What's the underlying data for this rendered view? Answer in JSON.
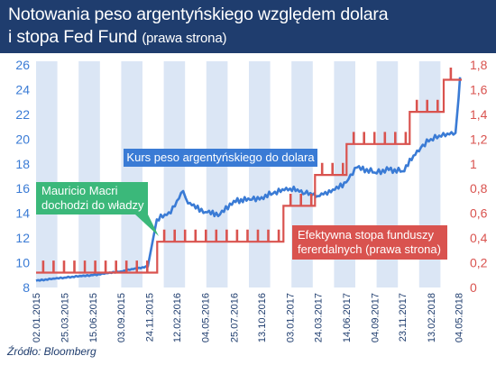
{
  "header": {
    "title_line1": "Notowania peso argentyńskiego względem dolara",
    "title_line2": "i stopa Fed Fund",
    "title_line2_sub": "(prawa strona)"
  },
  "source": "Źródło: Bloomberg",
  "annotations": {
    "peso_label": "Kurs peso argentyńskiego do dolara",
    "macri_line1": "Mauricio Macri",
    "macri_line2": "dochodzi do władzy",
    "fed_line1": "Efektywna stopa funduszy",
    "fed_line2": "fererdalnych (prawa strona)"
  },
  "colors": {
    "header_bg": "#1f3d6e",
    "peso_line": "#3a7bd5",
    "fed_line": "#d9534f",
    "macri_box": "#3bb87a",
    "stripe": "#dbe6f5",
    "left_axis_text": "#3a7bd5",
    "right_axis_text": "#d9534f"
  },
  "chart_data": {
    "type": "line",
    "x_tick_labels": [
      "02.01.2015",
      "25.03.2015",
      "15.06.2015",
      "03.09.2015",
      "24.11.2015",
      "12.02.2016",
      "04.05.2016",
      "25.07.2016",
      "13.10.2016",
      "03.01.2017",
      "24.03.2017",
      "14.06.2017",
      "04.09.2017",
      "23.11.2017",
      "13.02.2018",
      "04.05.2018"
    ],
    "y_left": {
      "label": "",
      "ticks": [
        8,
        10,
        12,
        14,
        16,
        18,
        20,
        22,
        24,
        26
      ],
      "ylim": [
        8,
        26
      ]
    },
    "y_right": {
      "label": "",
      "ticks": [
        "0",
        "0,2",
        "0,4",
        "0,6",
        "0,8",
        "1",
        "1,2",
        "1,4",
        "1,6",
        "1,8"
      ],
      "ylim": [
        0,
        1.8
      ]
    },
    "series": [
      {
        "name": "Kurs peso argentyńskiego do dolara",
        "axis": "left",
        "points": [
          [
            "02.01.2015",
            8.55
          ],
          [
            "25.03.2015",
            8.8
          ],
          [
            "15.06.2015",
            9.0
          ],
          [
            "03.09.2015",
            9.3
          ],
          [
            "20.11.2015",
            9.7
          ],
          [
            "16.12.2015",
            13.5
          ],
          [
            "25.01.2016",
            14.0
          ],
          [
            "01.03.2016",
            15.8
          ],
          [
            "15.03.2016",
            14.8
          ],
          [
            "04.05.2016",
            14.1
          ],
          [
            "15.06.2016",
            13.9
          ],
          [
            "25.07.2016",
            15.0
          ],
          [
            "15.09.2016",
            15.1
          ],
          [
            "13.10.2016",
            15.3
          ],
          [
            "15.11.2016",
            15.6
          ],
          [
            "03.01.2017",
            16.0
          ],
          [
            "15.02.2017",
            15.6
          ],
          [
            "24.03.2017",
            15.4
          ],
          [
            "01.05.2017",
            15.7
          ],
          [
            "14.06.2017",
            16.5
          ],
          [
            "15.07.2017",
            17.7
          ],
          [
            "04.09.2017",
            17.3
          ],
          [
            "15.10.2017",
            17.5
          ],
          [
            "23.11.2017",
            17.4
          ],
          [
            "15.01.2018",
            19.3
          ],
          [
            "13.02.2018",
            20.0
          ],
          [
            "15.03.2018",
            20.2
          ],
          [
            "25.04.2018",
            20.5
          ],
          [
            "04.05.2018",
            23.3
          ],
          [
            "08.05.2018",
            25.0
          ]
        ]
      },
      {
        "name": "Efektywna stopa funduszy fererdalnych",
        "axis": "right",
        "steps": [
          [
            "02.01.2015",
            0.12
          ],
          [
            "17.12.2015",
            0.37
          ],
          [
            "15.12.2016",
            0.66
          ],
          [
            "16.03.2017",
            0.91
          ],
          [
            "15.06.2017",
            1.16
          ],
          [
            "14.12.2017",
            1.42
          ],
          [
            "22.03.2018",
            1.68
          ]
        ],
        "spike_amplitude": 0.09,
        "spike_period_days": 30
      }
    ],
    "x_range": [
      "02.01.2015",
      "13.05.2018"
    ],
    "grid": "vertical stripes",
    "legend": "none (inline annotations)"
  }
}
